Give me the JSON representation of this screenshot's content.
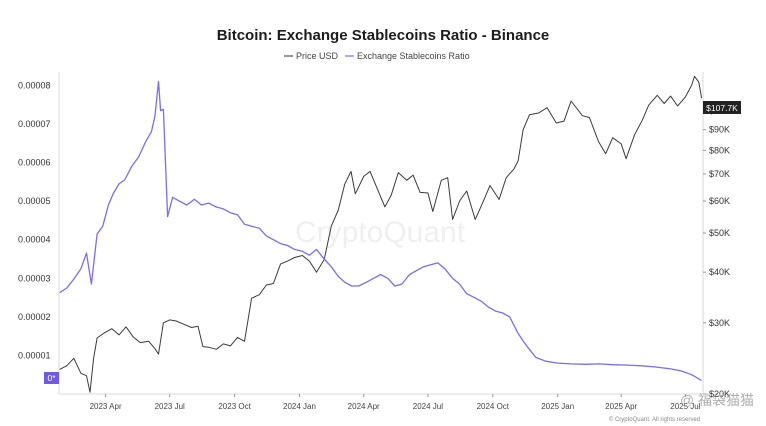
{
  "chart_data": {
    "type": "line",
    "title": "Bitcoin: Exchange Stablecoins Ratio - Binance",
    "legend": {
      "placement": "top-center",
      "entries": [
        {
          "label": "Price USD",
          "color": "#555555"
        },
        {
          "label": "Exchange Stablecoins Ratio",
          "color": "#7b6cf0"
        }
      ]
    },
    "grid": false,
    "x_axis": {
      "type": "date",
      "range": [
        "2023-01-25",
        "2025-07-26"
      ],
      "tick_labels": [
        "2023 Apr",
        "2023 Jul",
        "2023 Oct",
        "2024 Jan",
        "2024 Apr",
        "2024 Jul",
        "2024 Oct",
        "2025 Jan",
        "2025 Apr",
        "2025 Jul"
      ],
      "tick_dates": [
        "2023-04-01",
        "2023-07-01",
        "2023-10-01",
        "2024-01-01",
        "2024-04-01",
        "2024-07-01",
        "2024-10-01",
        "2025-01-01",
        "2025-04-01",
        "2025-07-01"
      ]
    },
    "y_axis_left": {
      "label": "",
      "range": [
        0,
        8.35e-05
      ],
      "tick_labels": [
        "0.00008",
        "0.00007",
        "0.00006",
        "0.00005",
        "0.00004",
        "0.00003",
        "0.00002",
        "0.00001"
      ],
      "tick_values": [
        8e-05,
        7e-05,
        6e-05,
        5e-05,
        4e-05,
        3e-05,
        2e-05,
        1e-05
      ],
      "zero_tag": "0*"
    },
    "y_axis_right": {
      "label": "",
      "scale": "log",
      "range": [
        20000,
        125000
      ],
      "tick_labels": [
        "$100K",
        "$90K",
        "$80K",
        "$70K",
        "$60K",
        "$50K",
        "$40K",
        "$30K",
        "$20K"
      ],
      "tick_values": [
        100000,
        90000,
        80000,
        70000,
        60000,
        50000,
        40000,
        30000,
        20000
      ],
      "last_value_tag": "$107.7K"
    },
    "series": [
      {
        "name": "Exchange Stablecoins Ratio",
        "axis": "left",
        "color": "#7b6cf0",
        "x": [
          "2023-01-26",
          "2023-02-05",
          "2023-02-15",
          "2023-02-25",
          "2023-03-05",
          "2023-03-12",
          "2023-03-20",
          "2023-03-28",
          "2023-04-05",
          "2023-04-12",
          "2023-04-20",
          "2023-04-28",
          "2023-05-08",
          "2023-05-18",
          "2023-05-28",
          "2023-06-05",
          "2023-06-10",
          "2023-06-15",
          "2023-06-18",
          "2023-06-22",
          "2023-06-28",
          "2023-07-05",
          "2023-07-15",
          "2023-07-25",
          "2023-08-05",
          "2023-08-15",
          "2023-08-25",
          "2023-09-05",
          "2023-09-15",
          "2023-09-25",
          "2023-10-05",
          "2023-10-15",
          "2023-10-25",
          "2023-11-05",
          "2023-11-15",
          "2023-11-25",
          "2023-12-05",
          "2023-12-15",
          "2023-12-25",
          "2024-01-05",
          "2024-01-15",
          "2024-01-25",
          "2024-02-05",
          "2024-02-15",
          "2024-02-25",
          "2024-03-05",
          "2024-03-15",
          "2024-03-25",
          "2024-04-05",
          "2024-04-15",
          "2024-04-25",
          "2024-05-05",
          "2024-05-15",
          "2024-05-25",
          "2024-06-05",
          "2024-06-15",
          "2024-06-25",
          "2024-07-05",
          "2024-07-15",
          "2024-07-25",
          "2024-08-05",
          "2024-08-15",
          "2024-08-25",
          "2024-09-05",
          "2024-09-15",
          "2024-09-25",
          "2024-10-05",
          "2024-10-15",
          "2024-10-25",
          "2024-11-05",
          "2024-11-12",
          "2024-11-20",
          "2024-12-01",
          "2024-12-15",
          "2025-01-01",
          "2025-01-20",
          "2025-02-10",
          "2025-03-01",
          "2025-03-20",
          "2025-04-10",
          "2025-05-01",
          "2025-05-20",
          "2025-06-10",
          "2025-06-25",
          "2025-07-10",
          "2025-07-24"
        ],
        "values": [
          2.63e-05,
          2.75e-05,
          2.98e-05,
          3.25e-05,
          3.65e-05,
          2.85e-05,
          4.15e-05,
          4.35e-05,
          4.9e-05,
          5.2e-05,
          5.45e-05,
          5.55e-05,
          5.9e-05,
          6.15e-05,
          6.55e-05,
          6.8e-05,
          7.2e-05,
          8.1e-05,
          7.35e-05,
          7.38e-05,
          4.6e-05,
          5.1e-05,
          5e-05,
          4.9e-05,
          5.05e-05,
          4.9e-05,
          4.95e-05,
          4.85e-05,
          4.8e-05,
          4.7e-05,
          4.65e-05,
          4.4e-05,
          4.35e-05,
          4.3e-05,
          4.1e-05,
          4e-05,
          3.9e-05,
          3.85e-05,
          3.75e-05,
          3.7e-05,
          3.6e-05,
          3.75e-05,
          3.5e-05,
          3.3e-05,
          3.05e-05,
          2.9e-05,
          2.8e-05,
          2.8e-05,
          2.9e-05,
          3e-05,
          3.1e-05,
          3e-05,
          2.8e-05,
          2.85e-05,
          3.1e-05,
          3.2e-05,
          3.3e-05,
          3.35e-05,
          3.4e-05,
          3.25e-05,
          3e-05,
          2.85e-05,
          2.6e-05,
          2.5e-05,
          2.4e-05,
          2.25e-05,
          2.15e-05,
          2.1e-05,
          2e-05,
          1.6e-05,
          1.4e-05,
          1.2e-05,
          9.5e-06,
          8.5e-06,
          8e-06,
          7.8e-06,
          7.7e-06,
          7.8e-06,
          7.6e-06,
          7.5e-06,
          7.3e-06,
          7e-06,
          6.5e-06,
          6e-06,
          5e-06,
          3.5e-06
        ]
      },
      {
        "name": "Price USD",
        "axis": "right",
        "color": "#555555",
        "x": [
          "2023-01-26",
          "2023-02-05",
          "2023-02-15",
          "2023-02-25",
          "2023-03-05",
          "2023-03-10",
          "2023-03-15",
          "2023-03-20",
          "2023-03-30",
          "2023-04-10",
          "2023-04-20",
          "2023-04-30",
          "2023-05-10",
          "2023-05-20",
          "2023-06-01",
          "2023-06-10",
          "2023-06-15",
          "2023-06-22",
          "2023-07-01",
          "2023-07-10",
          "2023-07-20",
          "2023-08-01",
          "2023-08-10",
          "2023-08-17",
          "2023-08-25",
          "2023-09-05",
          "2023-09-15",
          "2023-09-25",
          "2023-10-05",
          "2023-10-15",
          "2023-10-25",
          "2023-11-05",
          "2023-11-15",
          "2023-11-25",
          "2023-12-05",
          "2023-12-15",
          "2023-12-25",
          "2024-01-05",
          "2024-01-15",
          "2024-01-25",
          "2024-02-05",
          "2024-02-15",
          "2024-02-25",
          "2024-03-05",
          "2024-03-14",
          "2024-03-20",
          "2024-04-01",
          "2024-04-10",
          "2024-04-20",
          "2024-05-01",
          "2024-05-10",
          "2024-05-20",
          "2024-06-01",
          "2024-06-10",
          "2024-06-20",
          "2024-07-01",
          "2024-07-08",
          "2024-07-20",
          "2024-07-29",
          "2024-08-05",
          "2024-08-15",
          "2024-08-25",
          "2024-09-06",
          "2024-09-15",
          "2024-09-27",
          "2024-10-10",
          "2024-10-20",
          "2024-10-31",
          "2024-11-06",
          "2024-11-13",
          "2024-11-22",
          "2024-12-05",
          "2024-12-17",
          "2024-12-30",
          "2025-01-10",
          "2025-01-20",
          "2025-02-05",
          "2025-02-15",
          "2025-02-28",
          "2025-03-10",
          "2025-03-20",
          "2025-04-01",
          "2025-04-08",
          "2025-04-20",
          "2025-05-01",
          "2025-05-10",
          "2025-05-22",
          "2025-06-01",
          "2025-06-10",
          "2025-06-20",
          "2025-07-01",
          "2025-07-10",
          "2025-07-14",
          "2025-07-20",
          "2025-07-24"
        ],
        "values": [
          23000,
          23500,
          24500,
          22500,
          22200,
          20200,
          24500,
          27500,
          28300,
          29000,
          28000,
          29300,
          27700,
          26800,
          27000,
          25900,
          25100,
          30000,
          30500,
          30300,
          29800,
          29200,
          29400,
          26200,
          26100,
          25800,
          26600,
          26300,
          27600,
          27000,
          34500,
          35200,
          37200,
          37500,
          41900,
          42600,
          43500,
          44000,
          42600,
          40000,
          43000,
          52000,
          57000,
          66000,
          71000,
          62500,
          69000,
          71000,
          64500,
          58000,
          62000,
          70500,
          67500,
          69500,
          63000,
          62800,
          56500,
          67500,
          68500,
          54000,
          60000,
          63500,
          54000,
          58500,
          65500,
          60500,
          68500,
          72000,
          75500,
          90000,
          98000,
          99000,
          102000,
          93500,
          94500,
          106000,
          97500,
          96500,
          84000,
          78500,
          86000,
          83000,
          76300,
          87500,
          95000,
          103500,
          109500,
          104500,
          109000,
          103000,
          108500,
          116000,
          122000,
          118000,
          107700
        ]
      }
    ]
  },
  "watermark": "CryptoQuant",
  "footer": "© CryptoQuant. All rights reserved",
  "overlay_watermark": "@ 福袋猫猫"
}
